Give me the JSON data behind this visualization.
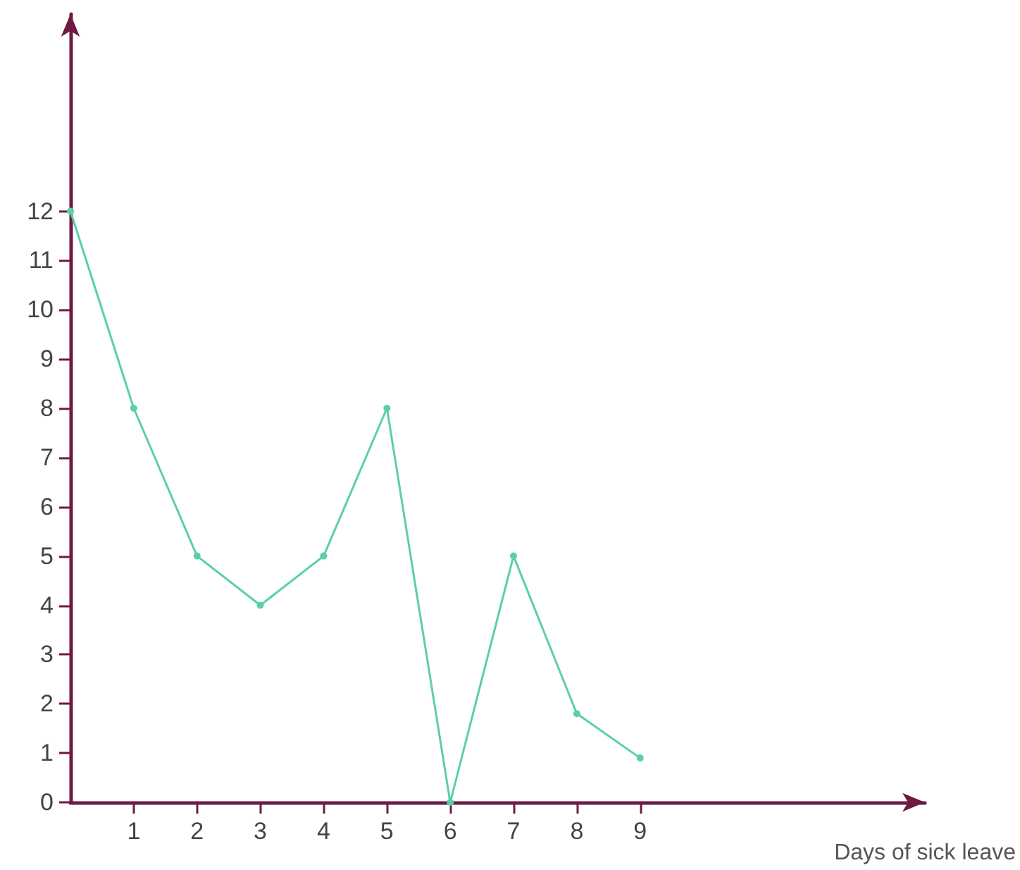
{
  "chart_data": {
    "type": "line",
    "xlabel": "Days of sick leave",
    "x": [
      0,
      1,
      2,
      3,
      4,
      5,
      6,
      7,
      8,
      9
    ],
    "series": [
      {
        "color": "#5ccfa6",
        "values": [
          12,
          8,
          5,
          4,
          5,
          8,
          0,
          5,
          1.8,
          0.9
        ]
      }
    ],
    "xlim": [
      0,
      13.5
    ],
    "xticks": [
      1,
      2,
      3,
      4,
      5,
      6,
      7,
      8,
      9
    ],
    "ylim": [
      0,
      16
    ],
    "yticks": [
      0,
      1,
      2,
      3,
      4,
      5,
      6,
      7,
      8,
      9,
      10,
      11,
      12
    ],
    "grid": false,
    "marker": "circle",
    "line_style": "solid"
  }
}
